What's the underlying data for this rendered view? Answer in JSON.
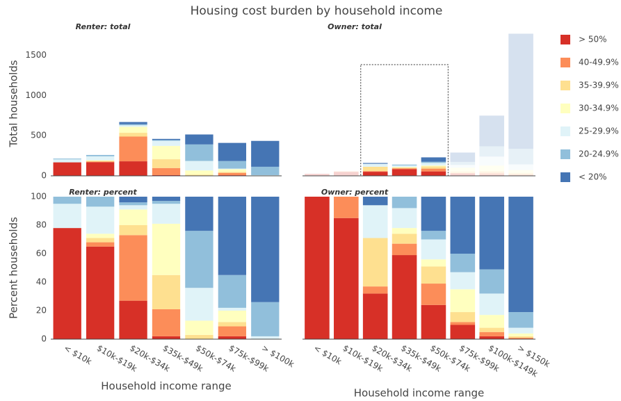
{
  "title": "Housing cost burden by household income",
  "legend": "right",
  "chart_data": [
    {
      "type": "bar",
      "stacked": true,
      "title": "Renter: total",
      "ylabel": "Total households",
      "ylim": [
        0,
        1800
      ],
      "yticks": [
        0,
        500,
        1000,
        1500
      ],
      "series": [
        {
          "name": "> 50%",
          "color": "#d73027",
          "values": [
            168,
            170,
            181,
            9,
            0,
            8,
            0
          ]
        },
        {
          "name": "40-49.9%",
          "color": "#fc8d59",
          "values": [
            0,
            8,
            308,
            88,
            0,
            29,
            0
          ]
        },
        {
          "name": "35-39.9%",
          "color": "#fee090",
          "values": [
            0,
            8,
            47,
            110,
            15,
            12,
            0
          ]
        },
        {
          "name": "30-34.9%",
          "color": "#ffffbf",
          "values": [
            0,
            8,
            74,
            166,
            52,
            33,
            0
          ]
        },
        {
          "name": "25-29.9%",
          "color": "#e0f3f8",
          "values": [
            37,
            49,
            20,
            64,
            118,
            8,
            9
          ]
        },
        {
          "name": "20-24.9%",
          "color": "#91bfdb",
          "values": [
            10,
            17,
            13,
            9,
            206,
            94,
            104
          ]
        },
        {
          "name": "< 20%",
          "color": "#4575b4",
          "values": [
            0,
            0,
            27,
            14,
            124,
            226,
            322
          ]
        }
      ]
    },
    {
      "type": "bar",
      "stacked": true,
      "title": "Owner: total",
      "ylim": [
        0,
        1800
      ],
      "selected_categories": [
        "$20k-$34k",
        "$35k-$49k",
        "$50k-$74k"
      ],
      "series": [
        {
          "name": "> 50%",
          "color": "#d73027",
          "values": [
            25,
            47,
            51,
            83,
            55,
            29,
            15,
            0
          ]
        },
        {
          "name": "40-49.9%",
          "color": "#fc8d59",
          "values": [
            0,
            8,
            8,
            11,
            35,
            6,
            23,
            18
          ]
        },
        {
          "name": "35-39.9%",
          "color": "#fee090",
          "values": [
            0,
            0,
            54,
            10,
            28,
            20,
            22,
            18
          ]
        },
        {
          "name": "30-34.9%",
          "color": "#ffffbf",
          "values": [
            0,
            0,
            0,
            6,
            11,
            46,
            68,
            35
          ]
        },
        {
          "name": "25-29.9%",
          "color": "#e0f3f8",
          "values": [
            0,
            0,
            37,
            19,
            32,
            35,
            112,
            71
          ]
        },
        {
          "name": "20-24.9%",
          "color": "#91bfdb",
          "values": [
            0,
            0,
            0,
            11,
            14,
            38,
            128,
            195
          ]
        },
        {
          "name": "< 20%",
          "color": "#4575b4",
          "values": [
            0,
            0,
            10,
            0,
            55,
            116,
            382,
            1433
          ]
        }
      ]
    },
    {
      "type": "bar",
      "stacked": true,
      "title": "Renter: percent",
      "ylabel": "Percent households",
      "xlabel": "Household income range",
      "categories": [
        "< $10k",
        "$10k-$19k",
        "$20k-$34k",
        "$35k-$49k",
        "$50k-$74k",
        "$75k-$99k",
        "> $100k"
      ],
      "ylim": [
        0,
        100
      ],
      "yticks": [
        0,
        20,
        40,
        60,
        80,
        100
      ],
      "series": [
        {
          "name": "> 50%",
          "color": "#d73027",
          "values": [
            78,
            65,
            27,
            2,
            0,
            2,
            0
          ]
        },
        {
          "name": "40-49.9%",
          "color": "#fc8d59",
          "values": [
            0,
            3,
            46,
            19,
            0,
            7,
            0
          ]
        },
        {
          "name": "35-39.9%",
          "color": "#fee090",
          "values": [
            0,
            3,
            7,
            24,
            3,
            3,
            0
          ]
        },
        {
          "name": "30-34.9%",
          "color": "#ffffbf",
          "values": [
            0,
            3,
            11,
            36,
            10,
            8,
            0
          ]
        },
        {
          "name": "25-29.9%",
          "color": "#e0f3f8",
          "values": [
            17,
            19,
            3,
            14,
            23,
            2,
            2
          ]
        },
        {
          "name": "20-24.9%",
          "color": "#91bfdb",
          "values": [
            5,
            7,
            2,
            2,
            40,
            23,
            24
          ]
        },
        {
          "name": "< 20%",
          "color": "#4575b4",
          "values": [
            0,
            0,
            4,
            3,
            24,
            55,
            74
          ]
        }
      ]
    },
    {
      "type": "bar",
      "stacked": true,
      "title": "Owner: percent",
      "xlabel": "Household income range",
      "categories": [
        "< $10k",
        "$10k-$19k",
        "$20k-$34k",
        "$35k-$49k",
        "$50k-$74k",
        "$75k-$99k",
        "$100k-$149k",
        "> $150k"
      ],
      "ylim": [
        0,
        100
      ],
      "series": [
        {
          "name": "> 50%",
          "color": "#d73027",
          "values": [
            100,
            85,
            32,
            59,
            24,
            10,
            2,
            0
          ]
        },
        {
          "name": "40-49.9%",
          "color": "#fc8d59",
          "values": [
            0,
            15,
            5,
            8,
            15,
            2,
            3,
            1
          ]
        },
        {
          "name": "35-39.9%",
          "color": "#fee090",
          "values": [
            0,
            0,
            34,
            7,
            12,
            7,
            3,
            1
          ]
        },
        {
          "name": "30-34.9%",
          "color": "#ffffbf",
          "values": [
            0,
            0,
            0,
            4,
            5,
            16,
            9,
            2
          ]
        },
        {
          "name": "25-29.9%",
          "color": "#e0f3f8",
          "values": [
            0,
            0,
            23,
            14,
            14,
            12,
            15,
            4
          ]
        },
        {
          "name": "20-24.9%",
          "color": "#91bfdb",
          "values": [
            0,
            0,
            0,
            8,
            6,
            13,
            17,
            11
          ]
        },
        {
          "name": "< 20%",
          "color": "#4575b4",
          "values": [
            0,
            0,
            6,
            0,
            24,
            40,
            51,
            81
          ]
        }
      ]
    }
  ]
}
